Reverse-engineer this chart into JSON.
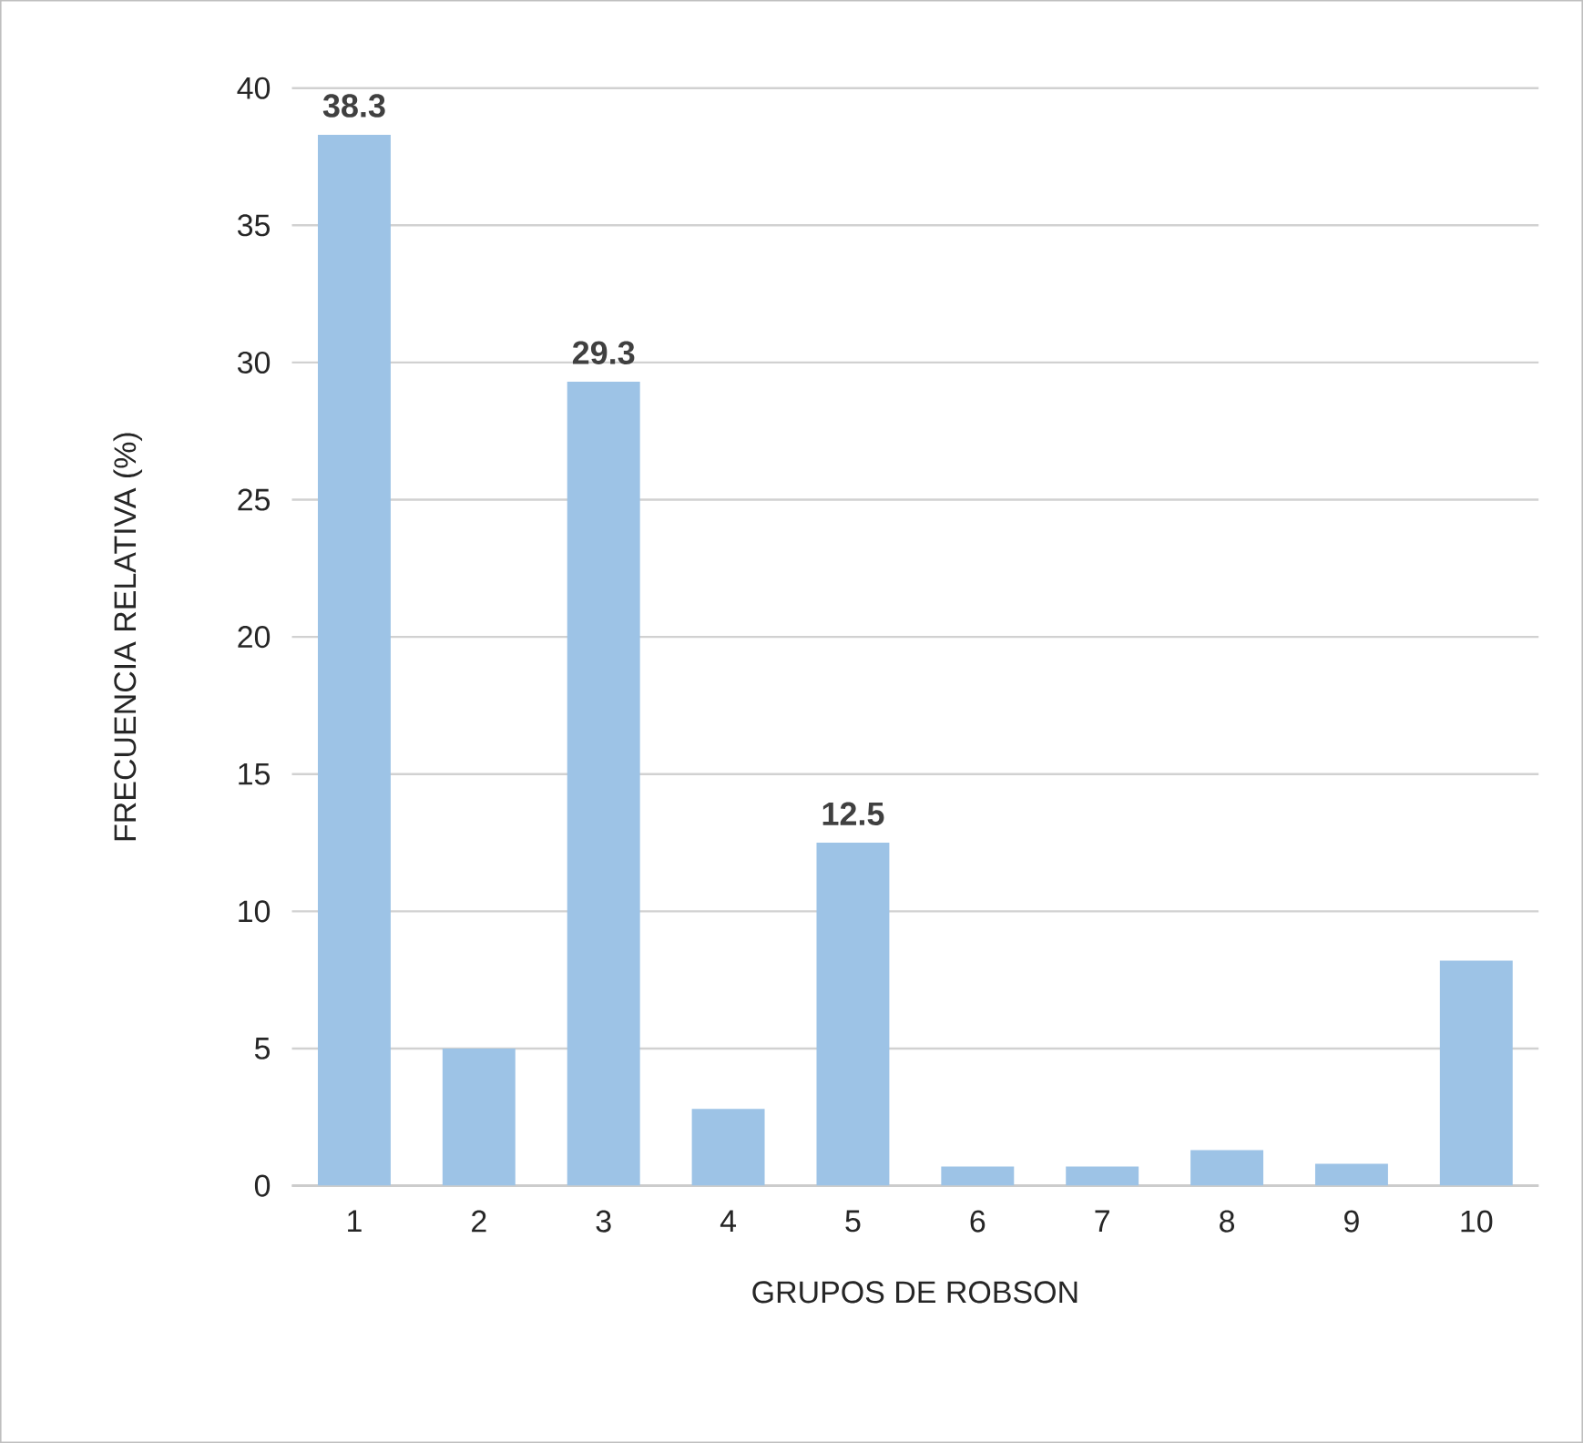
{
  "chart_data": {
    "type": "bar",
    "xlabel": "GRUPOS DE ROBSON",
    "ylabel": "FRECUENCIA RELATIVA (%)",
    "categories": [
      "1",
      "2",
      "3",
      "4",
      "5",
      "6",
      "7",
      "8",
      "9",
      "10"
    ],
    "values": [
      38.3,
      5.0,
      29.3,
      2.8,
      12.5,
      0.7,
      0.7,
      1.3,
      0.8,
      8.2
    ],
    "value_labels": [
      "38.3",
      null,
      "29.3",
      null,
      "12.5",
      null,
      null,
      null,
      null,
      null
    ],
    "color": "#9dc3e6",
    "ylim": [
      0,
      40
    ],
    "yticks": [
      0,
      5,
      10,
      15,
      20,
      25,
      30,
      35,
      40
    ],
    "grid": "y"
  }
}
